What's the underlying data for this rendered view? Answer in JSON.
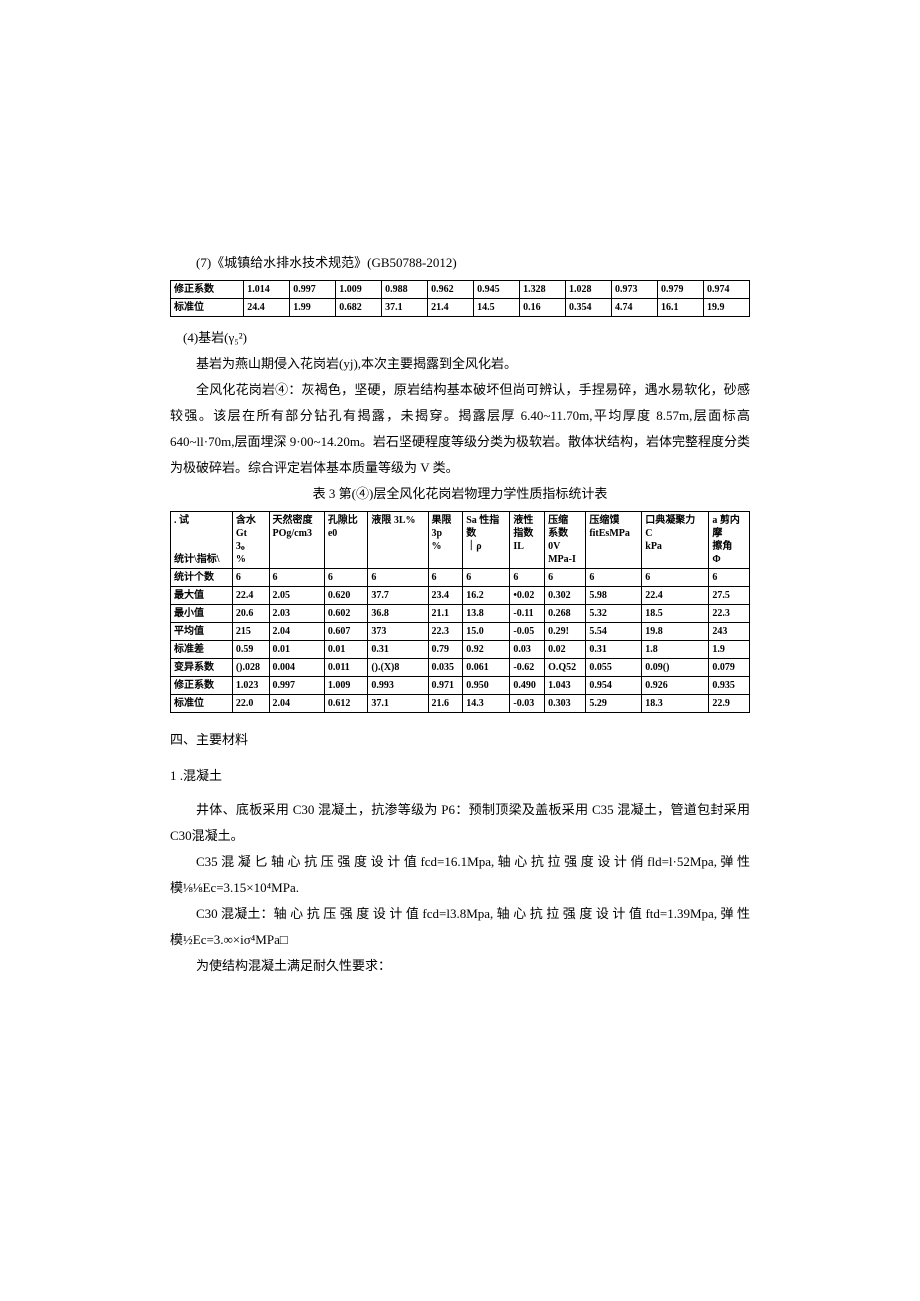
{
  "topLine": "(7)《城镇给水排水技术规范》(GB50788-2012)",
  "table1": {
    "rows": [
      [
        "修正系数",
        "1.014",
        "0.997",
        "1.009",
        "0.988",
        "0.962",
        "0.945",
        "1.328",
        "1.028",
        "0.973",
        "0.979",
        "0.974"
      ],
      [
        "标准位",
        "24.4",
        "1.99",
        "0.682",
        "37.1",
        "21.4",
        "14.5",
        "0.16",
        "0.354",
        "4.74",
        "16.1",
        "19.9"
      ]
    ]
  },
  "para1": "(4)基岩(γ₅²)",
  "para2": "基岩为燕山期侵入花岗岩(yj),本次主要揭露到全风化岩。",
  "para3": "全风化花岗岩④：灰褐色，坚硬，原岩结构基本破坏但尚可辨认，手捏易碎，遇水易软化，砂感较强。该层在所有部分钻孔有揭露，未揭穿。揭露层厚 6.40~11.70m,平均厚度 8.57m,层面标高640~ll·70m,层面埋深 9·00~14.20m。岩石坚硬程度等级分类为极软岩。散体状结构，岩体完整程度分类为极破碎岩。综合评定岩体基本质量等级为 V 类。",
  "table2Title": "表 3 第(④)层全风化花岗岩物理力学性质指标统计表",
  "table2": {
    "headers": [
      ". 试\n\n\n统计\\指标\\",
      "含水\nGt\n3。\n%",
      "天然密度\nPOg/cm3",
      "孔隙比\ne0",
      "液限 3L%",
      "果限\n3p\n%",
      "Sa 性指\n数\n｜ρ",
      "液性\n指数\nIL",
      "压缩\n系数\n0V\nMPa-I",
      "压缩馍\nfitEsMPa",
      "口典凝聚力\nC\nkPa",
      "a 剪内\n摩\n擦角\nΦ"
    ],
    "rows": [
      [
        "统计个数",
        "6",
        "6",
        "6",
        "6",
        "6",
        "6",
        "6",
        "6",
        "6",
        "6",
        "6"
      ],
      [
        "最大值",
        "22.4",
        "2.05",
        "0.620",
        "37.7",
        "23.4",
        "16.2",
        "•0.02",
        "0.302",
        "5.98",
        "22.4",
        "27.5"
      ],
      [
        "最小值",
        "20.6",
        "2.03",
        "0.602",
        "36.8",
        "21.1",
        "13.8",
        "-0.11",
        "0.268",
        "5.32",
        "18.5",
        "22.3"
      ],
      [
        "平均值",
        "215",
        "2.04",
        "0.607",
        "373",
        "22.3",
        "15.0",
        "-0.05",
        "0.29!",
        "5.54",
        "19.8",
        "243"
      ],
      [
        "标准差",
        "0.59",
        "0.01",
        "0.01",
        "0.31",
        "0.79",
        "0.92",
        "0.03",
        "0.02",
        "0.31",
        "1.8",
        "1.9"
      ],
      [
        "变异系数",
        "().028",
        "0.004",
        "0.011",
        "().(X)8",
        "0.035",
        "0.061",
        "-0.62",
        "O.Q52",
        "0.055",
        "0.09()",
        "0.079"
      ],
      [
        "修正系数",
        "1.023",
        "0.997",
        "1.009",
        "0.993",
        "0.971",
        "0.950",
        "0.490",
        "1.043",
        "0.954",
        "0.926",
        "0.935"
      ],
      [
        "标准位",
        "22.0",
        "2.04",
        "0.612",
        "37.1",
        "21.6",
        "14.3",
        "-0.03",
        "0.303",
        "5.29",
        "18.3",
        "22.9"
      ]
    ]
  },
  "sectionH": "四、主要材料",
  "subH": "1 .混凝土",
  "para4": "井体、底板采用 C30 混凝土，抗渗等级为 P6：预制顶梁及盖板采用 C35 混凝土，管道包封采用 C30混凝土。",
  "para5": "C35 混 凝 匕 轴 心 抗 压 强 度 设 计 值 fcd=16.1Mpa, 轴 心 抗 拉 强 度 设 计 俏 fld=l·52Mpa, 弹 性 模⅛⅛Ec=3.15×10⁴MPa.",
  "para6": "C30 混凝土：轴 心 抗 压 强 度 设 计 值 fcd=l3.8Mpa, 轴 心 抗 拉 强 度 设 计 值 ftd=1.39Mpa, 弹 性 模½Ec=3.∞×iσ⁴MPa□",
  "para7": "为使结构混凝土满足耐久性要求："
}
